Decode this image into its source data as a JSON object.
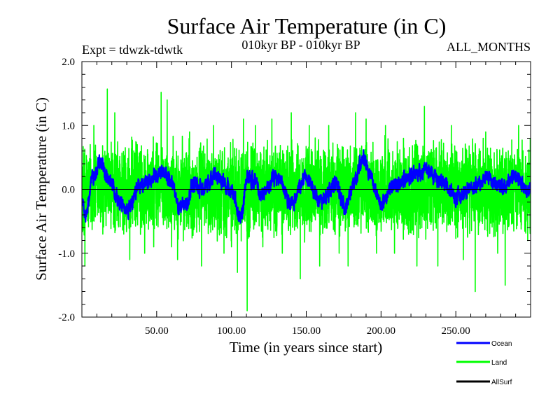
{
  "chart_data": {
    "type": "line",
    "title": "Surface Air Temperature (in C)",
    "subtitle_left": "Expt = tdwzk-tdwtk",
    "subtitle_center": "010kyr BP - 010kyr BP",
    "subtitle_right": "ALL_MONTHS",
    "xlabel": "Time (in years since start)",
    "ylabel": "Surface Air Temperature (in C)",
    "xlim": [
      0,
      300
    ],
    "ylim": [
      -2.0,
      2.0
    ],
    "x_ticks": [
      50,
      100,
      150,
      200,
      250
    ],
    "x_tick_labels": [
      "50.00",
      "100.00",
      "150.00",
      "200.00",
      "250.00"
    ],
    "y_ticks": [
      -2.0,
      -1.0,
      0.0,
      1.0,
      2.0
    ],
    "y_tick_labels": [
      "-2.0",
      "-1.0",
      "0.0",
      "1.0",
      "2.0"
    ],
    "zero_line": true,
    "grid": false,
    "legend_position": "bottom-right",
    "series": [
      {
        "name": "Land",
        "color": "#00ff00",
        "points_per_year": 12,
        "anchor_values": [
          {
            "x": 2,
            "y": -1.2
          },
          {
            "x": 8,
            "y": 1.0
          },
          {
            "x": 14,
            "y": -0.7
          },
          {
            "x": 17,
            "y": 1.57
          },
          {
            "x": 22,
            "y": 1.2
          },
          {
            "x": 28,
            "y": -0.7
          },
          {
            "x": 32,
            "y": -1.1
          },
          {
            "x": 37,
            "y": 0.7
          },
          {
            "x": 42,
            "y": -1.0
          },
          {
            "x": 48,
            "y": -0.9
          },
          {
            "x": 53,
            "y": 1.52
          },
          {
            "x": 57,
            "y": 1.4
          },
          {
            "x": 60,
            "y": -0.9
          },
          {
            "x": 64,
            "y": -1.1
          },
          {
            "x": 72,
            "y": 0.9
          },
          {
            "x": 80,
            "y": -1.2
          },
          {
            "x": 88,
            "y": 1.0
          },
          {
            "x": 95,
            "y": -1.0
          },
          {
            "x": 100,
            "y": -0.9
          },
          {
            "x": 104,
            "y": -1.3
          },
          {
            "x": 108,
            "y": 1.1
          },
          {
            "x": 110.5,
            "y": -1.9
          },
          {
            "x": 116,
            "y": 1.0
          },
          {
            "x": 121,
            "y": -0.9
          },
          {
            "x": 127,
            "y": 1.1
          },
          {
            "x": 134,
            "y": -1.0
          },
          {
            "x": 140,
            "y": 1.2
          },
          {
            "x": 146,
            "y": -1.4
          },
          {
            "x": 152,
            "y": 1.0
          },
          {
            "x": 159,
            "y": -1.2
          },
          {
            "x": 165,
            "y": 1.0
          },
          {
            "x": 172,
            "y": -1.0
          },
          {
            "x": 178,
            "y": -1.2
          },
          {
            "x": 183,
            "y": 1.2
          },
          {
            "x": 190,
            "y": 1.1
          },
          {
            "x": 197,
            "y": -1.0
          },
          {
            "x": 203,
            "y": 1.0
          },
          {
            "x": 209,
            "y": -1.0
          },
          {
            "x": 215,
            "y": 0.8
          },
          {
            "x": 224,
            "y": -1.2
          },
          {
            "x": 229,
            "y": 1.3
          },
          {
            "x": 238,
            "y": -1.2
          },
          {
            "x": 247,
            "y": 1.0
          },
          {
            "x": 255,
            "y": -1.1
          },
          {
            "x": 263,
            "y": -1.6
          },
          {
            "x": 270,
            "y": 0.9
          },
          {
            "x": 278,
            "y": -1.0
          },
          {
            "x": 283,
            "y": -1.5
          },
          {
            "x": 292,
            "y": 1.0
          },
          {
            "x": 297,
            "y": -0.5
          }
        ]
      },
      {
        "name": "Ocean",
        "color": "#0000ff",
        "points_per_year": 12,
        "anchor_values": [
          {
            "x": 0,
            "y": -0.2
          },
          {
            "x": 3,
            "y": -0.4
          },
          {
            "x": 7,
            "y": 0.2
          },
          {
            "x": 12,
            "y": 0.38
          },
          {
            "x": 20,
            "y": 0.1
          },
          {
            "x": 25,
            "y": -0.2
          },
          {
            "x": 30,
            "y": -0.3
          },
          {
            "x": 40,
            "y": 0.1
          },
          {
            "x": 50,
            "y": 0.2
          },
          {
            "x": 55,
            "y": 0.3
          },
          {
            "x": 60,
            "y": 0.1
          },
          {
            "x": 65,
            "y": -0.3
          },
          {
            "x": 70,
            "y": -0.2
          },
          {
            "x": 75,
            "y": 0.1
          },
          {
            "x": 80,
            "y": 0.0
          },
          {
            "x": 90,
            "y": 0.2
          },
          {
            "x": 100,
            "y": 0.0
          },
          {
            "x": 106,
            "y": -0.5
          },
          {
            "x": 111,
            "y": 0.2
          },
          {
            "x": 116,
            "y": 0.1
          },
          {
            "x": 120,
            "y": -0.1
          },
          {
            "x": 130,
            "y": 0.2
          },
          {
            "x": 140,
            "y": -0.2
          },
          {
            "x": 150,
            "y": 0.2
          },
          {
            "x": 160,
            "y": -0.2
          },
          {
            "x": 170,
            "y": 0.1
          },
          {
            "x": 176,
            "y": -0.3
          },
          {
            "x": 182,
            "y": 0.1
          },
          {
            "x": 188,
            "y": 0.5
          },
          {
            "x": 193,
            "y": 0.2
          },
          {
            "x": 200,
            "y": -0.2
          },
          {
            "x": 210,
            "y": 0.1
          },
          {
            "x": 220,
            "y": 0.2
          },
          {
            "x": 230,
            "y": 0.3
          },
          {
            "x": 240,
            "y": 0.1
          },
          {
            "x": 250,
            "y": -0.1
          },
          {
            "x": 260,
            "y": 0.0
          },
          {
            "x": 270,
            "y": 0.2
          },
          {
            "x": 280,
            "y": 0.0
          },
          {
            "x": 290,
            "y": 0.2
          },
          {
            "x": 298,
            "y": 0.0
          }
        ]
      }
    ],
    "legend": [
      {
        "label": "Ocean",
        "color": "#0000ff"
      },
      {
        "label": "Land",
        "color": "#00ff00"
      },
      {
        "label": "AllSurf",
        "color": "#000000"
      }
    ]
  }
}
